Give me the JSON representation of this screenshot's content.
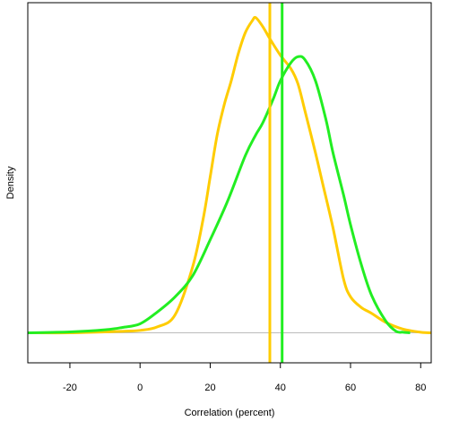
{
  "chart_data": {
    "type": "line",
    "title": "",
    "xlabel": "Correlation (percent)",
    "ylabel": "Density",
    "xlim": [
      -32,
      83
    ],
    "ylim": [
      -0.01,
      0.11
    ],
    "x_ticks": [
      -20,
      0,
      20,
      40,
      60,
      80
    ],
    "y_ticks": [],
    "grid": false,
    "baseline": 0,
    "colors": {
      "yellow": "#ffcc00",
      "green": "#22ee22",
      "baseline": "#bbbbbb",
      "frame": "#000000"
    },
    "series": [
      {
        "color": "#ffcc00",
        "x": [
          -32,
          -20,
          -10,
          -5,
          0,
          5,
          10,
          15,
          18,
          20,
          22,
          24,
          26,
          28,
          30,
          32,
          33,
          35,
          37,
          40,
          43,
          45,
          47,
          50,
          52,
          55,
          58,
          60,
          63,
          66,
          70,
          75,
          80,
          83
        ],
        "y": [
          0,
          0,
          0.0003,
          0.0005,
          0.0008,
          0.002,
          0.006,
          0.022,
          0.038,
          0.052,
          0.066,
          0.076,
          0.084,
          0.093,
          0.1,
          0.104,
          0.105,
          0.102,
          0.098,
          0.0925,
          0.088,
          0.083,
          0.074,
          0.06,
          0.05,
          0.035,
          0.018,
          0.012,
          0.0085,
          0.0065,
          0.0035,
          0.0012,
          0.0002,
          0
        ]
      },
      {
        "color": "#22ee22",
        "x": [
          -32,
          -20,
          -10,
          -5,
          0,
          5,
          10,
          15,
          20,
          25,
          30,
          33,
          35,
          38,
          40,
          43,
          45,
          47,
          50,
          53,
          55,
          58,
          60,
          63,
          66,
          70,
          73,
          75,
          77
        ],
        "y": [
          0,
          0.0003,
          0.001,
          0.0018,
          0.003,
          0.007,
          0.012,
          0.019,
          0.031,
          0.044,
          0.059,
          0.066,
          0.07,
          0.078,
          0.084,
          0.09,
          0.092,
          0.091,
          0.084,
          0.071,
          0.06,
          0.046,
          0.036,
          0.023,
          0.0125,
          0.004,
          0.0005,
          0.0002,
          0
        ]
      }
    ],
    "vlines": [
      {
        "x": 37,
        "color": "#ffcc00"
      },
      {
        "x": 40.5,
        "color": "#22ee22"
      }
    ]
  }
}
